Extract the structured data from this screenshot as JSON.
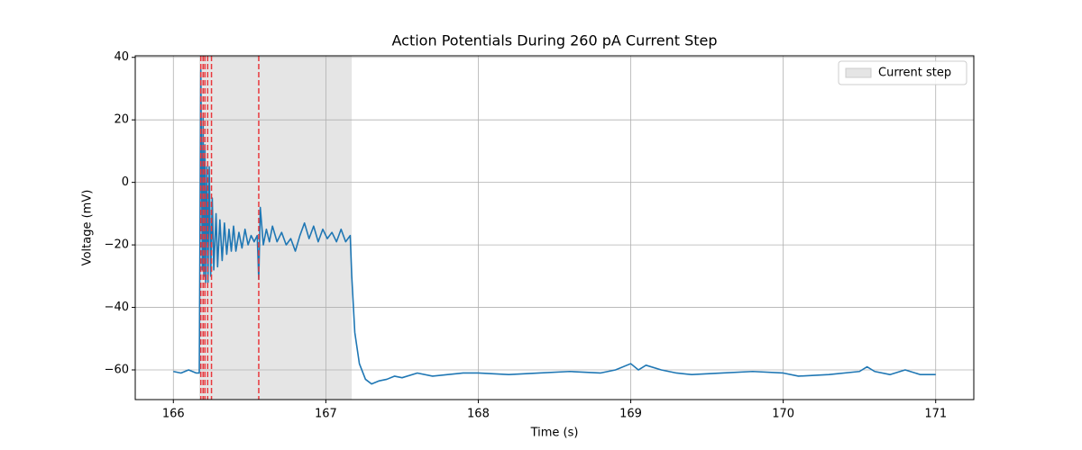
{
  "chart_data": {
    "type": "line",
    "title": "Action Potentials During 260 pA Current Step",
    "xlabel": "Time (s)",
    "ylabel": "Voltage (mV)",
    "xlim": [
      165.75,
      171.25
    ],
    "ylim": [
      -69.5,
      40.5
    ],
    "xticks": [
      166,
      167,
      168,
      169,
      170,
      171
    ],
    "yticks": [
      {
        "value": -60,
        "label": "−60"
      },
      {
        "value": -40,
        "label": "−40"
      },
      {
        "value": -20,
        "label": "−20"
      },
      0,
      20,
      40
    ],
    "grid": true,
    "legend": "upper right",
    "span": {
      "label": "Current step",
      "start": 166.17,
      "end": 167.17,
      "color": "#e5e5e5"
    },
    "vlines": {
      "values": [
        166.18,
        166.195,
        166.207,
        166.225,
        166.25,
        166.56
      ],
      "color": "#e8383d"
    },
    "x": [
      166.0,
      166.05,
      166.1,
      166.15,
      166.17,
      166.18,
      166.19,
      166.195,
      166.2,
      166.207,
      166.212,
      166.22,
      166.227,
      166.235,
      166.245,
      166.255,
      166.265,
      166.28,
      166.29,
      166.305,
      166.32,
      166.335,
      166.35,
      166.365,
      166.38,
      166.395,
      166.41,
      166.43,
      166.45,
      166.47,
      166.49,
      166.51,
      166.53,
      166.55,
      166.56,
      166.57,
      166.59,
      166.61,
      166.63,
      166.65,
      166.68,
      166.71,
      166.74,
      166.77,
      166.8,
      166.83,
      166.86,
      166.89,
      166.92,
      166.95,
      166.98,
      167.01,
      167.04,
      167.07,
      167.1,
      167.13,
      167.16,
      167.17,
      167.19,
      167.22,
      167.26,
      167.3,
      167.35,
      167.4,
      167.45,
      167.5,
      167.6,
      167.7,
      167.8,
      167.9,
      168.0,
      168.2,
      168.4,
      168.6,
      168.8,
      168.9,
      169.0,
      169.05,
      169.1,
      169.2,
      169.3,
      169.4,
      169.6,
      169.8,
      170.0,
      170.1,
      170.3,
      170.5,
      170.55,
      170.6,
      170.7,
      170.8,
      170.9,
      171.0
    ],
    "series": [
      {
        "color": "#1f77b4",
        "values": [
          -60.5,
          -61,
          -60,
          -61,
          -61,
          36,
          -28,
          21,
          -30,
          12,
          -32,
          5,
          -32,
          5,
          -30,
          -5,
          -28,
          -10,
          -27,
          -12,
          -25,
          -13,
          -23,
          -15,
          -22,
          -14,
          -22,
          -16,
          -21,
          -15,
          -20,
          -17,
          -19,
          -17,
          -31,
          -8,
          -20,
          -15,
          -19,
          -14,
          -19,
          -16,
          -20,
          -18,
          -22,
          -17,
          -13,
          -18,
          -14,
          -19,
          -15,
          -18,
          -16,
          -19,
          -15,
          -19,
          -17,
          -30,
          -48,
          -58,
          -63,
          -64.5,
          -63.5,
          -63,
          -62,
          -62.5,
          -61,
          -62,
          -61.5,
          -61,
          -61,
          -61.5,
          -61,
          -60.5,
          -61,
          -60,
          -58,
          -60,
          -58.5,
          -60,
          -61,
          -61.5,
          -61,
          -60.5,
          -61,
          -62,
          -61.5,
          -60.5,
          -59,
          -60.5,
          -61.5,
          -60,
          -61.5,
          -61.5
        ]
      }
    ]
  }
}
